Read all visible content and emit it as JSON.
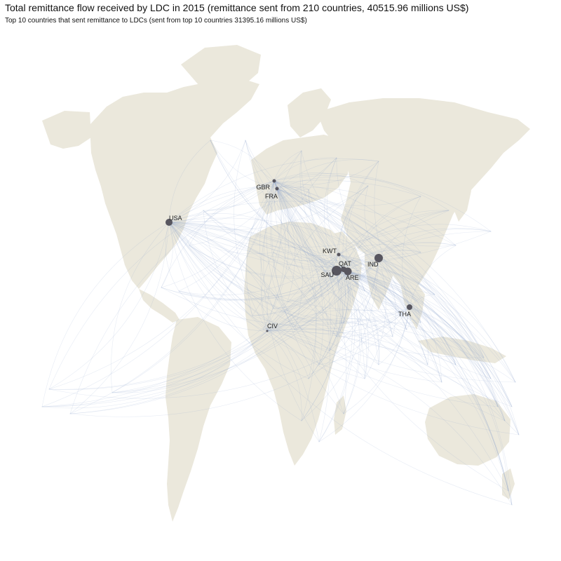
{
  "title": "Total remittance flow received by LDC in 2015 (remittance sent from 210 countries, 40515.96 millions US$)",
  "subtitle": "Top 10 countries that sent remittance to LDCs (sent from top 10 countries 31395.16 millions US$)",
  "colors": {
    "land": "#ebe8dc",
    "flow": "#8ea4cc",
    "node": "#58565f"
  },
  "top_senders": [
    {
      "code": "USA"
    },
    {
      "code": "GBR"
    },
    {
      "code": "FRA"
    },
    {
      "code": "KWT"
    },
    {
      "code": "QAT"
    },
    {
      "code": "SAU"
    },
    {
      "code": "ARE"
    },
    {
      "code": "IND"
    },
    {
      "code": "THA"
    },
    {
      "code": "CIV"
    }
  ]
}
